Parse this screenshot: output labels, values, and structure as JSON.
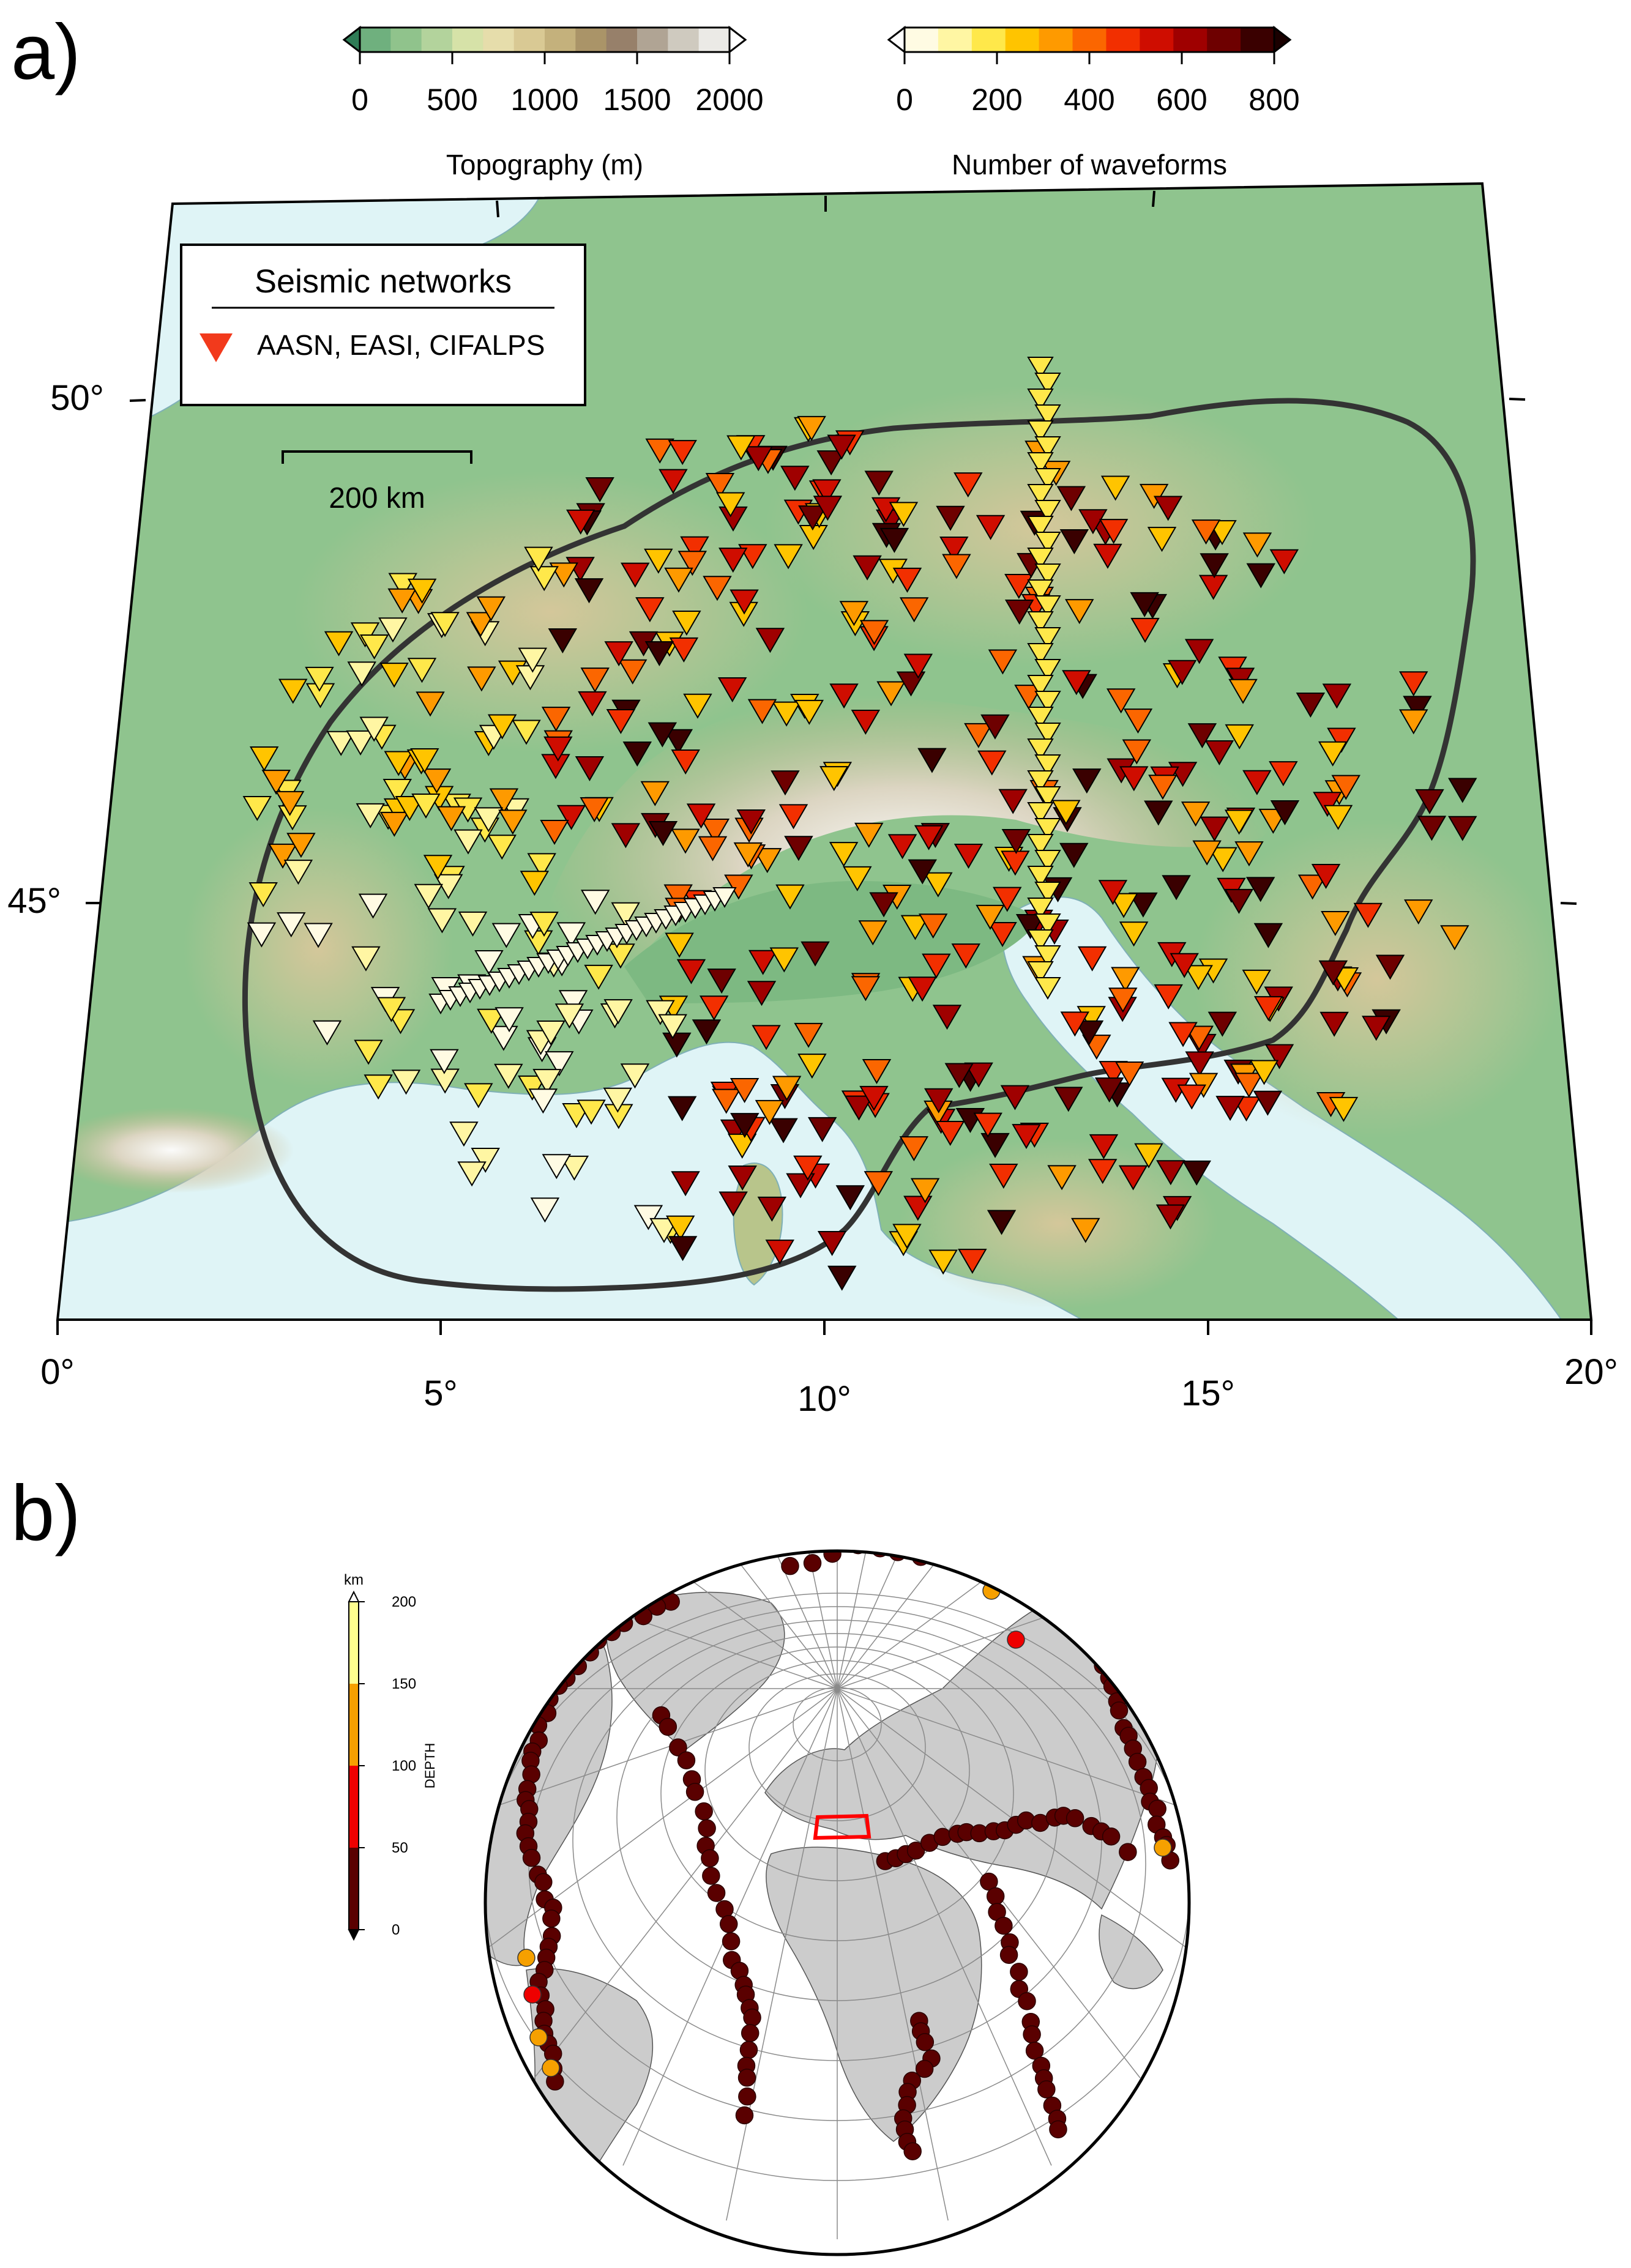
{
  "panel_a": {
    "label": "a)",
    "topo_colorbar": {
      "title": "Topography (m)",
      "ticks": [
        "0",
        "500",
        "1000",
        "1500",
        "2000"
      ],
      "colors": [
        "#6fb07e",
        "#90c38c",
        "#b3d39c",
        "#d6e2a8",
        "#e6ddab",
        "#d9c994",
        "#c4b17c",
        "#aa9468",
        "#97806a",
        "#b0a494",
        "#cfcabf",
        "#ebeae6"
      ]
    },
    "waveform_colorbar": {
      "title": "Number of waveforms",
      "ticks": [
        "0",
        "200",
        "400",
        "600",
        "800"
      ],
      "colors": [
        "#fffbe3",
        "#fff6a3",
        "#ffe84a",
        "#ffc400",
        "#fe9a00",
        "#fb6600",
        "#f22f00",
        "#cf0d00",
        "#9f0000",
        "#6e0000",
        "#3a0000"
      ]
    },
    "legend": {
      "title": "Seismic networks",
      "entry": "AASN, EASI, CIFALPS",
      "symbol_color": "#f23a1c"
    },
    "scale_bar": "200 km",
    "lat_labels": [
      "50°",
      "45°"
    ],
    "lon_labels": [
      "0°",
      "5°",
      "10°",
      "15°",
      "20°"
    ]
  },
  "panel_b": {
    "label": "b)",
    "depth_colorbar": {
      "unit": "km",
      "axis_label": "DEPTH",
      "ticks": [
        "200",
        "150",
        "100",
        "50",
        "0"
      ],
      "colors": [
        "#ffff8f",
        "#f6a000",
        "#ee0000",
        "#5a0000"
      ]
    },
    "event_color": "#5a0000",
    "study_area_color": "#ff0000"
  }
}
